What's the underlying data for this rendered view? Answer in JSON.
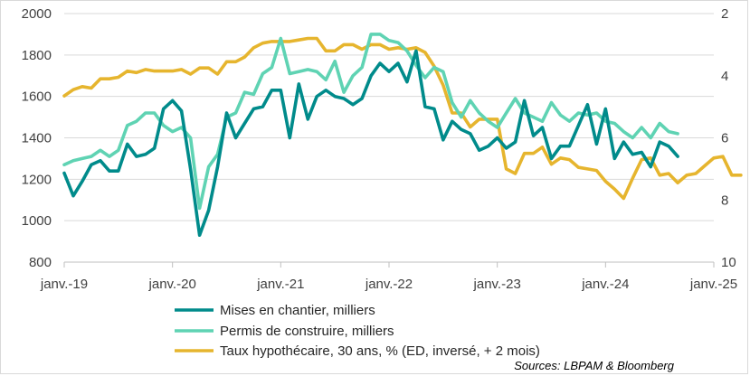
{
  "chart_data": {
    "type": "line",
    "title": "",
    "xlabel": "",
    "ylabel": "",
    "x_ticks": [
      "janv.-19",
      "janv.-20",
      "janv.-21",
      "janv.-22",
      "janv.-23",
      "janv.-24",
      "janv.-25"
    ],
    "x_range": [
      "2019-01",
      "2025-01"
    ],
    "left_axis": {
      "ticks": [
        "800",
        "1000",
        "1200",
        "1400",
        "1600",
        "1800",
        "2000"
      ],
      "ylim": [
        800,
        2000
      ]
    },
    "right_axis": {
      "ticks": [
        "2",
        "4",
        "6",
        "8",
        "10"
      ],
      "ylim": [
        2,
        10
      ],
      "inverted": true
    },
    "grid": "horizontal",
    "legend_position": "bottom",
    "series": [
      {
        "name": "Mises en chantier, milliers",
        "axis": "left",
        "color": "#008b8b",
        "start": "2019-01",
        "values": [
          1230,
          1120,
          1190,
          1270,
          1290,
          1240,
          1240,
          1370,
          1310,
          1320,
          1350,
          1540,
          1580,
          1530,
          1250,
          930,
          1050,
          1260,
          1520,
          1400,
          1470,
          1540,
          1550,
          1630,
          1630,
          1400,
          1660,
          1490,
          1600,
          1630,
          1600,
          1590,
          1560,
          1590,
          1700,
          1760,
          1720,
          1760,
          1670,
          1820,
          1550,
          1540,
          1390,
          1480,
          1440,
          1420,
          1340,
          1360,
          1400,
          1350,
          1380,
          1580,
          1410,
          1450,
          1300,
          1360,
          1360,
          1460,
          1560,
          1370,
          1540,
          1300,
          1380,
          1320,
          1330,
          1260,
          1380,
          1360,
          1310
        ]
      },
      {
        "name": "Permis de construire, milliers",
        "axis": "left",
        "color": "#5fd3b3",
        "start": "2019-01",
        "values": [
          1270,
          1290,
          1300,
          1310,
          1340,
          1310,
          1340,
          1460,
          1480,
          1520,
          1520,
          1460,
          1430,
          1450,
          1400,
          1060,
          1260,
          1320,
          1500,
          1520,
          1620,
          1610,
          1710,
          1740,
          1880,
          1710,
          1720,
          1730,
          1720,
          1680,
          1770,
          1620,
          1700,
          1740,
          1900,
          1900,
          1870,
          1860,
          1820,
          1750,
          1690,
          1740,
          1720,
          1570,
          1500,
          1580,
          1520,
          1480,
          1450,
          1520,
          1590,
          1520,
          1500,
          1480,
          1570,
          1510,
          1480,
          1520,
          1510,
          1520,
          1480,
          1470,
          1430,
          1400,
          1450,
          1400,
          1470,
          1430,
          1420
        ]
      },
      {
        "name": "Taux hypothécaire, 30 ans, % (ED, inversé, + 2 mois)",
        "axis": "right",
        "color": "#e6b52e",
        "start": "2019-01",
        "values": [
          4.65,
          4.45,
          4.35,
          4.4,
          4.1,
          4.1,
          4.05,
          3.85,
          3.9,
          3.8,
          3.85,
          3.85,
          3.85,
          3.8,
          3.95,
          3.75,
          3.75,
          3.95,
          3.55,
          3.55,
          3.4,
          3.1,
          2.95,
          2.9,
          2.9,
          2.9,
          2.85,
          2.8,
          2.8,
          3.2,
          3.2,
          3.0,
          3.0,
          3.15,
          3.0,
          3.0,
          3.15,
          3.1,
          3.15,
          3.1,
          3.25,
          3.7,
          4.3,
          5.2,
          5.2,
          5.65,
          5.4,
          5.4,
          5.4,
          7.0,
          7.15,
          6.5,
          6.5,
          6.3,
          6.85,
          6.65,
          6.7,
          6.95,
          7.0,
          7.05,
          7.4,
          7.65,
          7.95,
          7.3,
          6.7,
          6.65,
          7.2,
          7.15,
          7.45,
          7.2,
          7.15,
          6.9,
          6.65,
          6.6,
          7.2,
          7.2
        ]
      }
    ],
    "source": "Sources: LBPAM & Bloomberg"
  }
}
